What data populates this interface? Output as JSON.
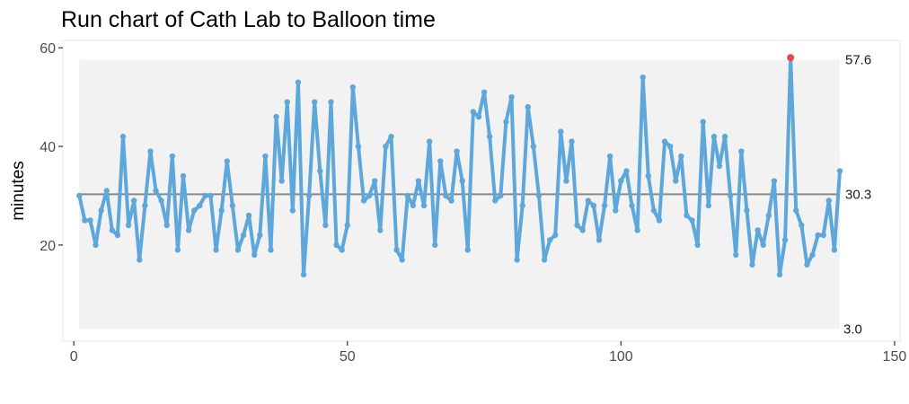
{
  "chart_data": {
    "type": "line",
    "title": "Run chart of Cath Lab to Balloon time",
    "xlabel": "",
    "ylabel": "minutes",
    "xlim": [
      -2,
      151
    ],
    "ylim": [
      0.5,
      61.5
    ],
    "x_ticks": [
      0,
      50,
      100,
      150
    ],
    "y_ticks": [
      20,
      40,
      60
    ],
    "grid": false,
    "legend": "none",
    "reference_lines": {
      "center": 30.3,
      "upper": 57.6,
      "lower": 3.0,
      "center_label": "30.3",
      "upper_label": "57.6",
      "lower_label": "3.0"
    },
    "band_x": [
      1,
      140
    ],
    "colors": {
      "line": "#5ea7db",
      "point": "#5ea7db",
      "highlight_point": "#e24b46",
      "center_line": "#888888",
      "band": "#f2f2f2",
      "panel_border": "#ebebeb"
    },
    "highlight_index": 131,
    "series": [
      {
        "values": [
          30,
          25,
          25,
          20,
          27,
          31,
          23,
          22,
          42,
          24,
          29,
          17,
          28,
          39,
          31,
          29,
          24,
          38,
          19,
          34,
          23,
          27,
          28,
          30,
          30,
          19,
          27,
          37,
          28,
          19,
          22,
          26,
          18,
          22,
          38,
          19,
          46,
          33,
          49,
          27,
          53,
          14,
          30,
          49,
          35,
          24,
          49,
          20,
          19,
          24,
          52,
          40,
          29,
          30,
          33,
          23,
          40,
          42,
          19,
          17,
          30,
          28,
          33,
          28,
          41,
          20,
          37,
          30,
          29,
          39,
          33,
          19,
          47,
          46,
          51,
          42,
          29,
          30,
          45,
          50,
          17,
          28,
          48,
          40,
          30,
          17,
          21,
          22,
          43,
          33,
          41,
          24,
          23,
          29,
          28,
          21,
          28,
          38,
          27,
          33,
          35,
          28,
          23,
          54,
          34,
          27,
          25,
          41,
          40,
          33,
          38,
          26,
          25,
          20,
          45,
          28,
          42,
          36,
          42,
          30,
          18,
          39,
          27,
          16,
          23,
          20,
          26,
          33,
          14,
          21,
          58,
          27,
          24,
          16,
          18,
          22,
          22,
          29,
          19,
          35
        ]
      }
    ]
  }
}
